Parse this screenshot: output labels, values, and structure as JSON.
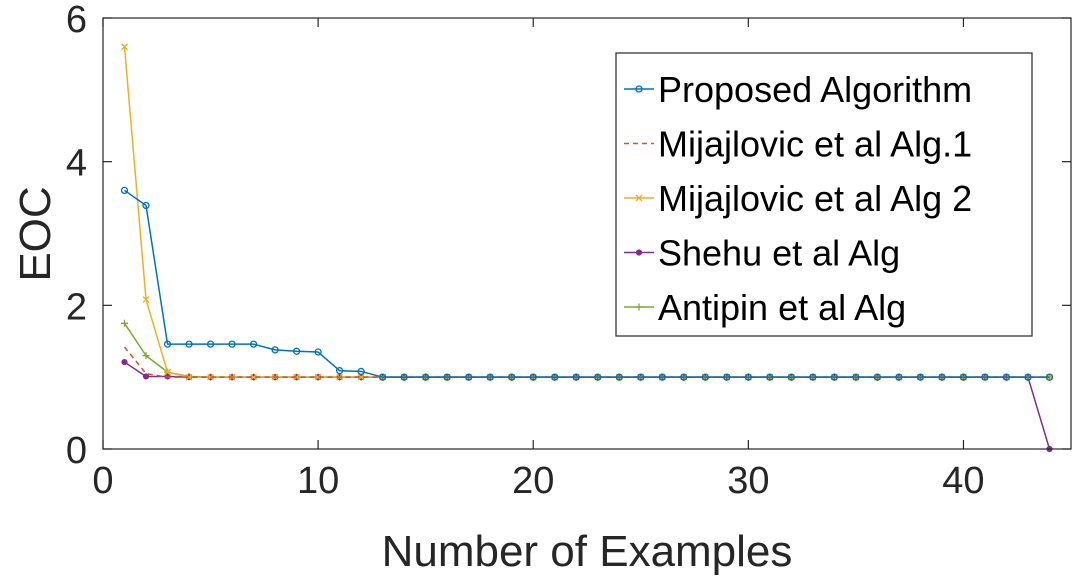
{
  "chart_data": {
    "type": "line",
    "title": "",
    "xlabel": "Number of Examples",
    "ylabel": "EOC",
    "xlim": [
      0,
      45
    ],
    "ylim": [
      0,
      6
    ],
    "xticks": [
      0,
      10,
      20,
      30,
      40
    ],
    "yticks": [
      0,
      2,
      4,
      6
    ],
    "grid": false,
    "legend_position": "top-right",
    "series": [
      {
        "name": "Proposed Algorithm",
        "color": "#0072BD",
        "marker": "circle",
        "line": "solid",
        "x": [
          1,
          2,
          3,
          4,
          5,
          6,
          7,
          8,
          9,
          10,
          11,
          12,
          13,
          14,
          15,
          16,
          17,
          18,
          19,
          20,
          21,
          22,
          23,
          24,
          25,
          26,
          27,
          28,
          29,
          30,
          31,
          32,
          33,
          34,
          35,
          36,
          37,
          38,
          39,
          40,
          41,
          42,
          43,
          44
        ],
        "values": [
          3.6,
          3.39,
          1.46,
          1.46,
          1.46,
          1.46,
          1.46,
          1.38,
          1.36,
          1.35,
          1.09,
          1.08,
          1,
          1,
          1,
          1,
          1,
          1,
          1,
          1,
          1,
          1,
          1,
          1,
          1,
          1,
          1,
          1,
          1,
          1,
          1,
          1,
          1,
          1,
          1,
          1,
          1,
          1,
          1,
          1,
          1,
          1,
          1,
          1
        ]
      },
      {
        "name": "Mijajlovic et al Alg.1",
        "color": "#D95319",
        "marker": "none",
        "line": "dashed",
        "x": [
          1,
          2,
          3,
          4,
          5,
          6,
          7,
          8,
          9,
          10,
          11,
          12,
          13,
          14,
          15,
          16,
          17,
          18,
          19,
          20,
          21,
          22,
          23,
          24,
          25,
          26,
          27,
          28,
          29,
          30,
          31,
          32,
          33,
          34,
          35,
          36,
          37,
          38,
          39,
          40,
          41,
          42,
          43,
          44
        ],
        "values": [
          1.42,
          1.05,
          1,
          1,
          1,
          1,
          1,
          1,
          1,
          1,
          1,
          1,
          1,
          1,
          1,
          1,
          1,
          1,
          1,
          1,
          1,
          1,
          1,
          1,
          1,
          1,
          1,
          1,
          1,
          1,
          1,
          1,
          1,
          1,
          1,
          1,
          1,
          1,
          1,
          1,
          1,
          1,
          1,
          1
        ]
      },
      {
        "name": "Mijajlovic et al Alg 2",
        "color": "#EDB120",
        "marker": "x",
        "line": "solid",
        "x": [
          1,
          2,
          3,
          4,
          5,
          6,
          7,
          8,
          9,
          10,
          11,
          12,
          13,
          14,
          15,
          16,
          17,
          18,
          19,
          20,
          21,
          22,
          23,
          24,
          25,
          26,
          27,
          28,
          29,
          30,
          31,
          32,
          33,
          34,
          35,
          36,
          37,
          38,
          39,
          40,
          41,
          42,
          43,
          44
        ],
        "values": [
          5.6,
          2.08,
          1.07,
          1,
          1,
          1,
          1,
          1,
          1,
          1,
          1,
          1,
          1,
          1,
          1,
          1,
          1,
          1,
          1,
          1,
          1,
          1,
          1,
          1,
          1,
          1,
          1,
          1,
          1,
          1,
          1,
          1,
          1,
          1,
          1,
          1,
          1,
          1,
          1,
          1,
          1,
          1,
          1,
          1
        ]
      },
      {
        "name": "Shehu et al Alg",
        "color": "#7E2F8E",
        "marker": "dot",
        "line": "solid",
        "x": [
          1,
          2,
          3,
          4,
          5,
          6,
          7,
          8,
          9,
          10,
          11,
          12,
          13,
          14,
          15,
          16,
          17,
          18,
          19,
          20,
          21,
          22,
          23,
          24,
          25,
          26,
          27,
          28,
          29,
          30,
          31,
          32,
          33,
          34,
          35,
          36,
          37,
          38,
          39,
          40,
          41,
          42,
          43,
          44
        ],
        "values": [
          1.21,
          1.01,
          1.01,
          1,
          1,
          1,
          1,
          1,
          1,
          1,
          1,
          1,
          1,
          1,
          1,
          1,
          1,
          1,
          1,
          1,
          1,
          1,
          1,
          1,
          1,
          1,
          1,
          1,
          1,
          1,
          1,
          1,
          1,
          1,
          1,
          1,
          1,
          1,
          1,
          1,
          1,
          1,
          1,
          0
        ]
      },
      {
        "name": "Antipin et al Alg",
        "color": "#77AC30",
        "marker": "plus",
        "line": "solid",
        "x": [
          1,
          2,
          3,
          4,
          5,
          6,
          7,
          8,
          9,
          10,
          11,
          12,
          13,
          14,
          15,
          16,
          17,
          18,
          19,
          20,
          21,
          22,
          23,
          24,
          25,
          26,
          27,
          28,
          29,
          30,
          31,
          32,
          33,
          34,
          35,
          36,
          37,
          38,
          39,
          40,
          41,
          42,
          43,
          44
        ],
        "values": [
          1.75,
          1.3,
          1.07,
          1.01,
          1,
          1,
          1,
          1,
          1,
          1,
          1,
          1,
          1,
          1,
          1,
          1,
          1,
          1,
          1,
          1,
          1,
          1,
          1,
          1,
          1,
          1,
          1,
          1,
          1,
          1,
          1,
          1,
          1,
          1,
          1,
          1,
          1,
          1,
          1,
          1,
          1,
          1,
          1,
          1
        ]
      }
    ]
  }
}
